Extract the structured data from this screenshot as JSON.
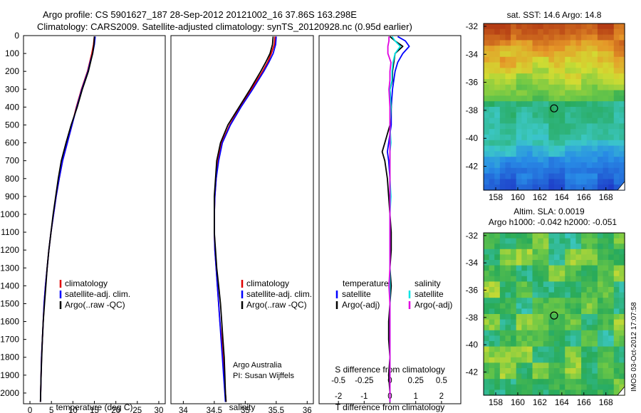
{
  "header": {
    "line1": "Argo profile: CS 5901627_187 28-Sep-2012 20121002_16 37.86S 163.298E",
    "line2": "Climatology: CARS2009. Satellite-adjusted climatology: synTS_20120928.nc (0.95d earlier)"
  },
  "side_stamp": "IMOS 03-Oct-2012 17:07:58",
  "colors": {
    "climatology": "#e00000",
    "satellite": "#0000ff",
    "argo": "#000000",
    "salinity_satellite": "#00e5e5",
    "salinity_argo": "#e000e0"
  },
  "chart_data": [
    {
      "type": "line",
      "id": "temperature",
      "xlabel": "temperature (deg C)",
      "xticks": [
        0,
        5,
        10,
        15,
        20,
        25,
        30
      ],
      "xlim": [
        -1.5,
        31.5
      ],
      "ylim": [
        2060,
        0
      ],
      "yticks": [
        0,
        100,
        200,
        300,
        400,
        500,
        600,
        700,
        800,
        900,
        1000,
        1100,
        1200,
        1300,
        1400,
        1500,
        1600,
        1700,
        1800,
        1900,
        2000
      ],
      "legend": [
        "climatology",
        "satellite-adj. clim.",
        "Argo(..raw -QC)"
      ],
      "depth": [
        5,
        50,
        100,
        150,
        200,
        300,
        400,
        500,
        600,
        700,
        800,
        900,
        1000,
        1100,
        1200,
        1300,
        1400,
        1500,
        1600,
        1700,
        1800,
        1900,
        2000,
        2050
      ],
      "series": [
        {
          "name": "climatology",
          "color": "#e00000",
          "values": [
            15.0,
            14.8,
            14.4,
            13.9,
            13.4,
            12.0,
            10.8,
            9.8,
            8.7,
            7.6,
            6.8,
            6.1,
            5.5,
            4.9,
            4.4,
            4.0,
            3.6,
            3.3,
            3.1,
            2.9,
            2.7,
            2.6,
            2.5,
            2.45
          ]
        },
        {
          "name": "satellite-adj. clim.",
          "color": "#0000ff",
          "values": [
            15.2,
            15.0,
            14.6,
            14.0,
            13.5,
            12.1,
            10.9,
            9.8,
            8.7,
            7.6,
            6.8,
            6.1,
            5.5,
            4.9,
            4.4,
            4.0,
            3.6,
            3.3,
            3.1,
            2.9,
            2.7,
            2.6,
            2.5,
            2.45
          ]
        },
        {
          "name": "Argo(..raw -QC)",
          "color": "#000000",
          "values": [
            15.0,
            14.9,
            14.6,
            14.1,
            13.6,
            12.2,
            11.0,
            9.6,
            8.4,
            7.3,
            6.6,
            6.0,
            5.4,
            4.9,
            4.4,
            4.0,
            3.7,
            3.4,
            3.1,
            2.9,
            2.75,
            2.6,
            2.5,
            2.45
          ]
        }
      ]
    },
    {
      "type": "line",
      "id": "salinity",
      "xlabel": "salinity",
      "xticks": [
        34,
        34.5,
        35,
        35.5,
        36
      ],
      "xlim": [
        33.8,
        36.1
      ],
      "ylim": [
        2060,
        0
      ],
      "legend": [
        "climatology",
        "satellite-adj. clim.",
        "Argo(..raw -QC)"
      ],
      "annotation": [
        "Argo Australia",
        "PI: Susan Wijffels"
      ],
      "depth": [
        5,
        50,
        100,
        150,
        200,
        300,
        400,
        500,
        600,
        700,
        800,
        900,
        1000,
        1100,
        1200,
        1300,
        1400,
        1500,
        1600,
        1700,
        1800,
        1900,
        2000,
        2050
      ],
      "series": [
        {
          "name": "climatology",
          "color": "#e00000",
          "values": [
            35.48,
            35.47,
            35.42,
            35.36,
            35.28,
            35.1,
            34.92,
            34.75,
            34.62,
            34.56,
            34.53,
            34.51,
            34.5,
            34.5,
            34.51,
            34.53,
            34.55,
            34.57,
            34.59,
            34.62,
            34.64,
            34.66,
            34.68,
            34.69
          ]
        },
        {
          "name": "satellite-adj. clim.",
          "color": "#0000ff",
          "values": [
            35.5,
            35.49,
            35.45,
            35.38,
            35.3,
            35.12,
            34.93,
            34.76,
            34.63,
            34.57,
            34.53,
            34.51,
            34.5,
            34.5,
            34.51,
            34.53,
            34.55,
            34.57,
            34.59,
            34.61,
            34.63,
            34.65,
            34.67,
            34.68
          ]
        },
        {
          "name": "Argo(..raw -QC)",
          "color": "#000000",
          "values": [
            35.45,
            35.44,
            35.4,
            35.33,
            35.25,
            35.08,
            34.9,
            34.72,
            34.6,
            34.54,
            34.52,
            34.5,
            34.5,
            34.5,
            34.52,
            34.54,
            34.57,
            34.6,
            34.62,
            34.64,
            34.66,
            34.67,
            34.68,
            34.69
          ]
        }
      ]
    },
    {
      "type": "line",
      "id": "difference",
      "xlabel": "T difference from climatology",
      "xticks": [
        "-2",
        "-1",
        "0",
        "1",
        "2"
      ],
      "xlim": [
        -2.75,
        2.75
      ],
      "s_label": "S difference from climatology",
      "s_ticks": [
        "-0.5",
        "-0.25",
        "0",
        "0.25",
        "0.5"
      ],
      "ylim": [
        2060,
        0
      ],
      "legend_temperature": {
        "title": "temperature",
        "items": [
          "satellite",
          "Argo(-adj)"
        ]
      },
      "legend_salinity": {
        "title": "salinity",
        "items": [
          "satellite",
          "Argo(-adj)"
        ]
      },
      "depth": [
        5,
        30,
        60,
        100,
        150,
        200,
        250,
        300,
        400,
        500,
        600,
        650,
        700,
        800,
        900,
        1000,
        1100,
        1200,
        1300,
        1400,
        1500,
        1600,
        1700,
        1800,
        1900,
        2000,
        2050
      ],
      "series": [
        {
          "name": "T satellite",
          "color": "#0000ff",
          "values": [
            0.3,
            0.6,
            0.75,
            0.5,
            0.3,
            0.2,
            0.15,
            0.1,
            0.05,
            0.05,
            -0.05,
            -0.1,
            -0.05,
            0.0,
            0.0,
            0.0,
            0.0,
            0.0,
            0.0,
            0.0,
            0.0,
            0.0,
            0.0,
            0.0,
            0.0,
            0.0,
            0.0
          ]
        },
        {
          "name": "T Argo(-adj)",
          "color": "#000000",
          "values": [
            0.0,
            0.2,
            0.5,
            0.2,
            0.15,
            0.1,
            0.1,
            0.0,
            0.05,
            0.0,
            -0.2,
            -0.3,
            -0.2,
            -0.1,
            -0.05,
            0.0,
            0.05,
            0.05,
            0.0,
            0.05,
            0.0,
            -0.05,
            -0.05,
            0.0,
            -0.05,
            0.0,
            0.0
          ]
        },
        {
          "name": "S satellite",
          "color": "#00e5e5",
          "values": [
            0.02,
            0.05,
            0.1,
            0.05,
            0.03,
            0.02,
            0.02,
            0.0,
            0.01,
            0.0,
            0.01,
            0.0,
            0.0,
            0.0,
            0.01,
            0.0,
            0.0,
            0.0,
            0.0,
            0.0,
            0.0,
            0.0,
            0.0,
            0.0,
            0.0,
            0.0,
            0.0
          ]
        },
        {
          "name": "S Argo(-adj)",
          "color": "#e000e0",
          "values": [
            -0.01,
            -0.01,
            -0.02,
            -0.02,
            0.01,
            0.0,
            0.0,
            -0.01,
            0.0,
            0.0,
            0.0,
            0.0,
            0.0,
            0.0,
            0.0,
            0.0,
            0.0,
            0.0,
            0.0,
            -0.01,
            0.0,
            0.0,
            0.0,
            0.0,
            0.0,
            0.0,
            0.0
          ]
        }
      ]
    },
    {
      "type": "heatmap",
      "id": "sst_map",
      "title": "sat. SST: 14.6 Argo: 14.8",
      "xticks": [
        "158",
        "160",
        "162",
        "164",
        "166",
        "168"
      ],
      "xlim": [
        156.9,
        169.7
      ],
      "yticks": [
        "-32",
        "-34",
        "-36",
        "-38",
        "-40",
        "-42"
      ],
      "ylim": [
        -43.7,
        -31.8
      ],
      "marker": {
        "lon": 163.298,
        "lat": -37.86
      }
    },
    {
      "type": "heatmap",
      "id": "sla_map",
      "title": "Altim. SLA: 0.0019",
      "subtitle": "Argo h1000: -0.042 h2000: -0.051",
      "xticks": [
        "158",
        "160",
        "162",
        "164",
        "166",
        "168"
      ],
      "xlim": [
        156.9,
        169.7
      ],
      "yticks": [
        "-32",
        "-34",
        "-36",
        "-38",
        "-40",
        "-42"
      ],
      "ylim": [
        -43.7,
        -31.8
      ],
      "marker": {
        "lon": 163.298,
        "lat": -37.86
      }
    }
  ]
}
